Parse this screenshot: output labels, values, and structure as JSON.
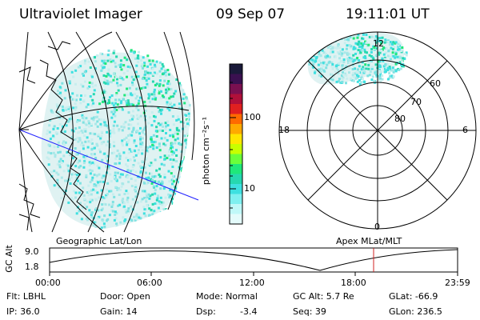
{
  "header": {
    "instrument": "Ultraviolet Imager",
    "date": "09 Sep 07",
    "time": "19:11:01 UT"
  },
  "colorbar": {
    "unit_label": "photon cm⁻²s⁻¹",
    "ticks": [
      "100",
      "10"
    ],
    "colors": [
      "#1a1a3a",
      "#3a1050",
      "#7a1050",
      "#b0103a",
      "#e02020",
      "#ff6a00",
      "#ffaa00",
      "#ffe600",
      "#c8ff00",
      "#6aff3a",
      "#1fe87a",
      "#26d8b0",
      "#3ee0e0",
      "#7ff0f0",
      "#c0f8f8",
      "#e4fbfb"
    ]
  },
  "left_panel": {
    "caption": "Geographic Lat/Lon"
  },
  "right_panel": {
    "caption": "Apex MLat/MLT",
    "mlt_labels": {
      "top": "12",
      "left": "18",
      "right": "6",
      "bottom": "0"
    },
    "lat_labels": [
      "60",
      "70",
      "80"
    ]
  },
  "timeline": {
    "ylabel": "GC Alt",
    "yticks": [
      "9.0",
      "1.8"
    ],
    "xticks": [
      "00:00",
      "06:00",
      "12:00",
      "18:00",
      "23:59"
    ],
    "current_marker": "19:11:01"
  },
  "info": {
    "filter": "Flt: LBHL",
    "door": "Door: Open",
    "mode": "Mode: Normal",
    "gc_alt": "GC Alt: 5.7 Re",
    "glat": "GLat: -66.9",
    "ip": "IP: 36.0",
    "gain": "Gain: 14",
    "dsp_label": "Dsp:",
    "dsp_value": "-3.4",
    "seq": "Seq: 39",
    "glon": "GLon: 236.5"
  },
  "icons": {
    "left_map": "geographic-projection",
    "right_map": "polar-grid"
  },
  "accent_colors": {
    "blue_line": "#2020ff",
    "red_marker": "#d02020",
    "aurora_cyan": "#3ee0e0"
  }
}
